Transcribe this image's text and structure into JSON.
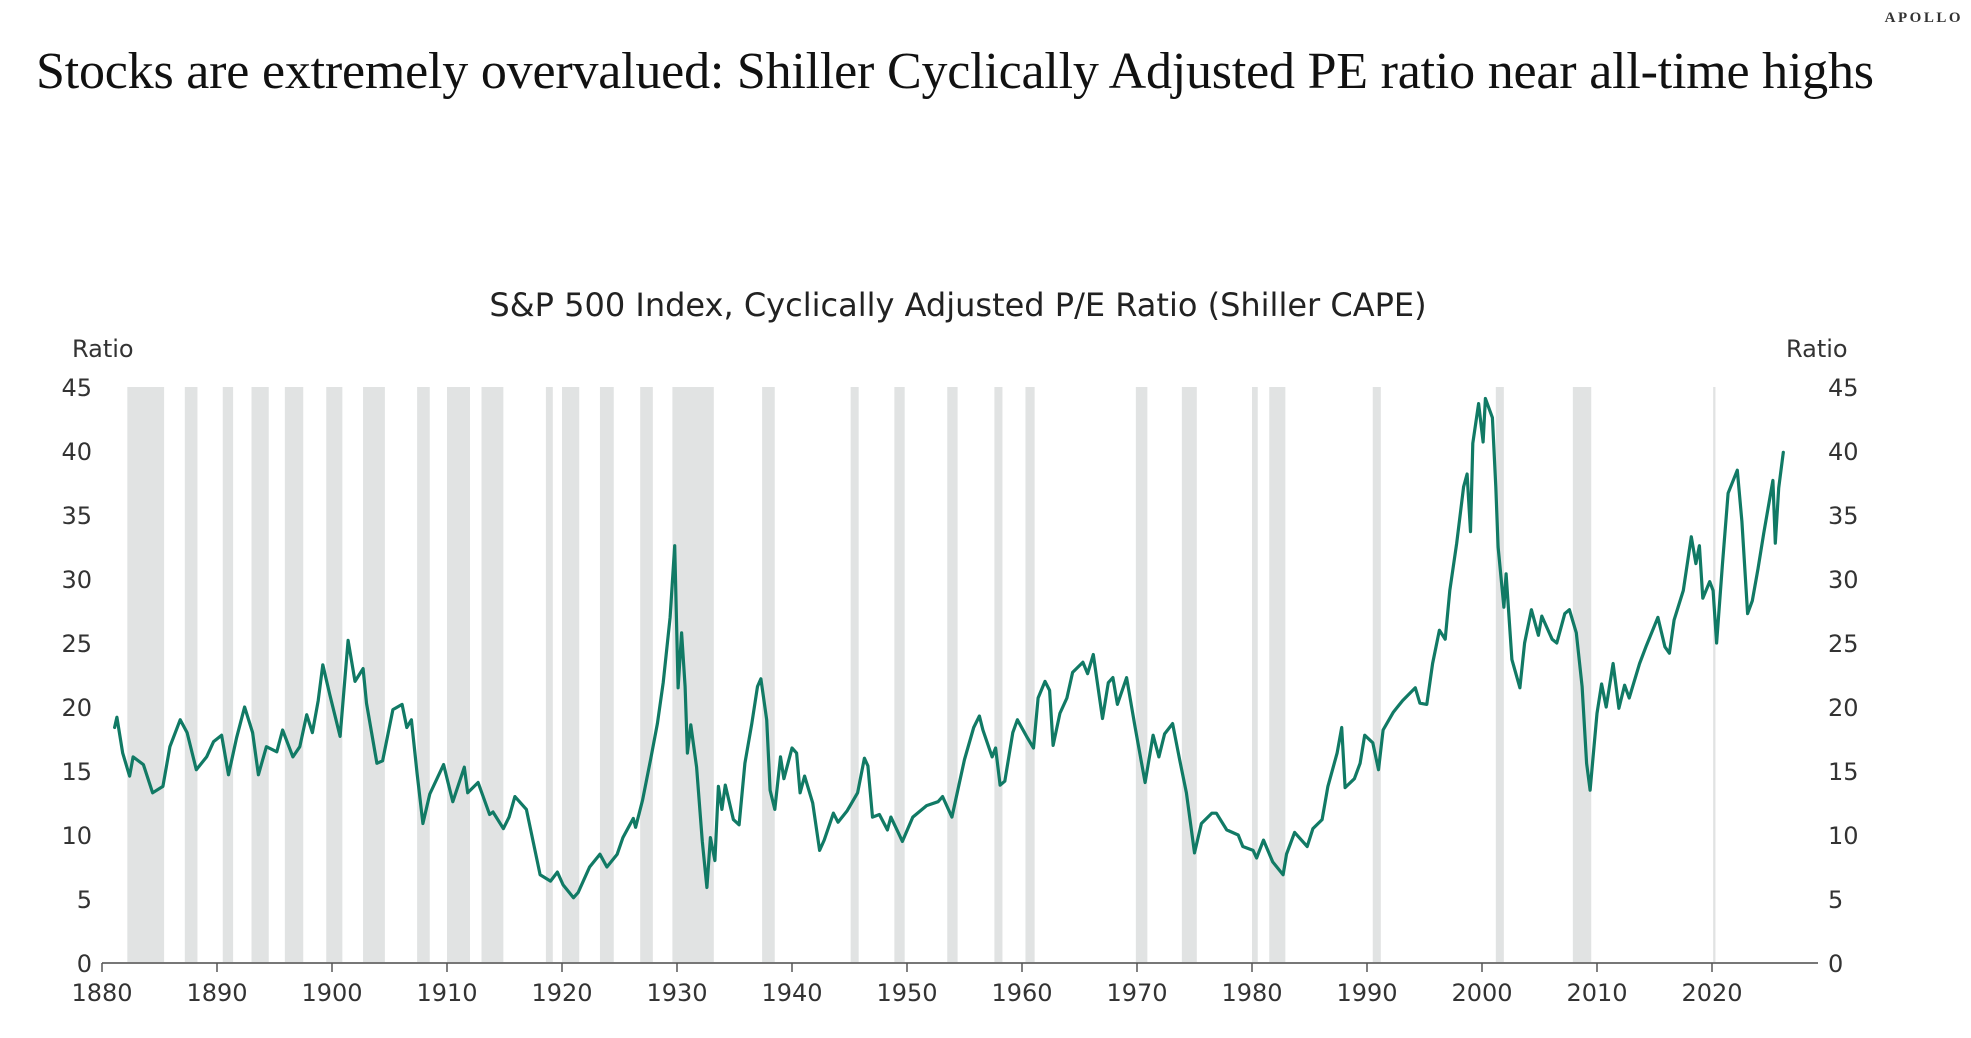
{
  "brand": "APOLLO",
  "headline": "Stocks are extremely overvalued: Shiller Cyclically Adjusted PE ratio near all-time highs",
  "colors": {
    "line": "#117a65",
    "recession": "#e1e3e3",
    "axis": "#777777"
  },
  "chart_data": {
    "type": "line",
    "title": "S&P 500 Index, Cyclically Adjusted P/E Ratio (Shiller CAPE)",
    "ylabel_left": "Ratio",
    "ylabel_right": "Ratio",
    "xlabel": "",
    "xlim": [
      1880,
      2030
    ],
    "ylim": [
      0,
      45
    ],
    "x_ticks": [
      1880,
      1890,
      1900,
      1910,
      1920,
      1930,
      1940,
      1950,
      1960,
      1970,
      1980,
      1990,
      2000,
      2010,
      2020
    ],
    "y_ticks": [
      0,
      5,
      10,
      15,
      20,
      25,
      30,
      35,
      40,
      45
    ],
    "grid": false,
    "legend": "none",
    "recessions": [
      [
        1882.2,
        1885.4
      ],
      [
        1887.2,
        1888.3
      ],
      [
        1890.5,
        1891.4
      ],
      [
        1893.0,
        1894.5
      ],
      [
        1895.9,
        1897.5
      ],
      [
        1899.5,
        1900.9
      ],
      [
        1902.7,
        1904.6
      ],
      [
        1907.4,
        1908.5
      ],
      [
        1910.0,
        1912.0
      ],
      [
        1913.0,
        1914.9
      ],
      [
        1918.6,
        1919.2
      ],
      [
        1920.0,
        1921.5
      ],
      [
        1923.3,
        1924.5
      ],
      [
        1926.8,
        1927.9
      ],
      [
        1929.6,
        1933.2
      ],
      [
        1937.4,
        1938.5
      ],
      [
        1945.1,
        1945.8
      ],
      [
        1948.9,
        1949.8
      ],
      [
        1953.5,
        1954.4
      ],
      [
        1957.6,
        1958.3
      ],
      [
        1960.3,
        1961.1
      ],
      [
        1969.9,
        1970.9
      ],
      [
        1973.9,
        1975.2
      ],
      [
        1980.0,
        1980.5
      ],
      [
        1981.5,
        1982.9
      ],
      [
        1990.5,
        1991.2
      ],
      [
        2001.2,
        2001.9
      ],
      [
        2007.9,
        2009.5
      ],
      [
        2020.1,
        2020.3
      ]
    ],
    "series": [
      {
        "name": "Shiller CAPE",
        "x": [
          1881.1,
          1881.3,
          1881.8,
          1882.4,
          1882.7,
          1883.6,
          1884.4,
          1885.3,
          1885.9,
          1886.8,
          1887.4,
          1888.2,
          1889.1,
          1889.7,
          1890.4,
          1891.0,
          1891.7,
          1892.4,
          1893.1,
          1893.6,
          1894.3,
          1895.2,
          1895.7,
          1896.6,
          1897.2,
          1897.8,
          1898.3,
          1898.8,
          1899.2,
          1899.8,
          1900.7,
          1901.4,
          1902.0,
          1902.7,
          1903.0,
          1903.9,
          1904.4,
          1905.3,
          1906.1,
          1906.5,
          1906.9,
          1907.4,
          1907.9,
          1908.5,
          1909.7,
          1910.5,
          1911.5,
          1911.8,
          1912.7,
          1913.7,
          1914.0,
          1914.9,
          1915.4,
          1915.9,
          1916.9,
          1918.1,
          1919.0,
          1919.6,
          1920.1,
          1921.0,
          1921.4,
          1922.4,
          1923.3,
          1923.9,
          1924.8,
          1925.3,
          1926.2,
          1926.4,
          1927.0,
          1927.7,
          1928.3,
          1928.8,
          1929.4,
          1929.8,
          1930.1,
          1930.4,
          1930.7,
          1930.9,
          1931.2,
          1931.7,
          1932.2,
          1932.6,
          1932.9,
          1933.3,
          1933.6,
          1933.9,
          1934.2,
          1934.9,
          1935.4,
          1935.9,
          1936.5,
          1937.0,
          1937.3,
          1937.8,
          1938.1,
          1938.5,
          1939.0,
          1939.3,
          1940.0,
          1940.4,
          1940.7,
          1941.1,
          1941.8,
          1942.4,
          1942.8,
          1943.6,
          1944.0,
          1944.8,
          1945.7,
          1946.3,
          1946.6,
          1947.0,
          1947.6,
          1948.3,
          1948.6,
          1949.6,
          1950.5,
          1951.7,
          1952.7,
          1953.1,
          1953.9,
          1955.0,
          1955.8,
          1956.3,
          1956.6,
          1957.4,
          1957.7,
          1958.1,
          1958.5,
          1959.2,
          1959.6,
          1960.4,
          1961.0,
          1961.4,
          1962.0,
          1962.4,
          1962.7,
          1963.3,
          1963.9,
          1964.4,
          1965.3,
          1965.7,
          1966.2,
          1967.0,
          1967.5,
          1967.9,
          1968.3,
          1969.1,
          1969.8,
          1970.7,
          1971.4,
          1971.9,
          1972.4,
          1973.1,
          1973.7,
          1974.3,
          1975.0,
          1975.6,
          1976.5,
          1976.9,
          1977.8,
          1978.8,
          1979.2,
          1980.1,
          1980.4,
          1981.0,
          1981.8,
          1982.7,
          1983.0,
          1983.7,
          1984.8,
          1985.3,
          1986.1,
          1986.6,
          1987.4,
          1987.8,
          1988.1,
          1988.9,
          1989.4,
          1989.8,
          1990.5,
          1991.0,
          1991.4,
          1992.3,
          1993.1,
          1994.2,
          1994.6,
          1995.2,
          1995.7,
          1996.3,
          1996.8,
          1997.2,
          1997.8,
          1998.4,
          1998.7,
          1999.0,
          1999.2,
          1999.7,
          2000.1,
          2000.3,
          2000.9,
          2001.2,
          2001.4,
          2001.9,
          2002.1,
          2002.6,
          2003.3,
          2003.7,
          2004.3,
          2004.9,
          2005.2,
          2006.1,
          2006.5,
          2007.2,
          2007.6,
          2008.2,
          2008.7,
          2009.1,
          2009.4,
          2010.0,
          2010.4,
          2010.8,
          2011.4,
          2011.9,
          2012.4,
          2012.8,
          2013.7,
          2014.3,
          2015.3,
          2015.9,
          2016.3,
          2016.7,
          2017.5,
          2018.2,
          2018.6,
          2018.9,
          2019.2,
          2019.8,
          2020.1,
          2020.4,
          2020.9,
          2021.4,
          2022.2,
          2022.6,
          2023.1,
          2023.5,
          2024.0,
          2024.5,
          2025.3,
          2025.5,
          2025.8,
          2026.2
        ],
        "values": [
          18.4,
          19.2,
          16.4,
          14.6,
          16.1,
          15.5,
          13.3,
          13.8,
          16.9,
          19.0,
          18.0,
          15.1,
          16.1,
          17.3,
          17.8,
          14.7,
          17.6,
          20.0,
          18.0,
          14.7,
          16.9,
          16.5,
          18.2,
          16.1,
          16.9,
          19.4,
          18.0,
          20.5,
          23.3,
          21.0,
          17.7,
          25.2,
          22.0,
          23.0,
          20.3,
          15.6,
          15.8,
          19.8,
          20.2,
          18.4,
          19.0,
          14.8,
          10.9,
          13.2,
          15.5,
          12.6,
          15.3,
          13.3,
          14.1,
          11.6,
          11.8,
          10.5,
          11.4,
          13.0,
          12.0,
          6.9,
          6.4,
          7.1,
          6.1,
          5.1,
          5.5,
          7.5,
          8.5,
          7.5,
          8.5,
          9.8,
          11.3,
          10.6,
          12.7,
          15.9,
          18.7,
          21.9,
          27.0,
          32.6,
          21.5,
          25.8,
          21.6,
          16.4,
          18.6,
          15.3,
          9.5,
          5.9,
          9.8,
          8.0,
          13.8,
          12.0,
          13.9,
          11.2,
          10.8,
          15.6,
          18.7,
          21.6,
          22.2,
          19.0,
          13.5,
          12.0,
          16.1,
          14.4,
          16.8,
          16.4,
          13.3,
          14.6,
          12.5,
          8.8,
          9.6,
          11.7,
          11.0,
          11.9,
          13.3,
          16.0,
          15.4,
          11.4,
          11.6,
          10.4,
          11.4,
          9.5,
          11.4,
          12.3,
          12.6,
          13.0,
          11.4,
          15.9,
          18.4,
          19.3,
          18.2,
          16.1,
          16.8,
          13.9,
          14.2,
          18.0,
          19.0,
          17.7,
          16.8,
          20.7,
          22.0,
          21.3,
          17.0,
          19.5,
          20.7,
          22.7,
          23.5,
          22.6,
          24.1,
          19.1,
          21.9,
          22.3,
          20.2,
          22.3,
          18.6,
          14.1,
          17.8,
          16.1,
          17.9,
          18.7,
          15.9,
          13.3,
          8.6,
          10.9,
          11.7,
          11.7,
          10.4,
          10.0,
          9.1,
          8.8,
          8.2,
          9.6,
          7.9,
          6.9,
          8.5,
          10.2,
          9.1,
          10.5,
          11.2,
          13.8,
          16.4,
          18.4,
          13.7,
          14.4,
          15.6,
          17.8,
          17.2,
          15.1,
          18.2,
          19.6,
          20.5,
          21.5,
          20.3,
          20.2,
          23.4,
          26.0,
          25.3,
          29.1,
          32.8,
          37.2,
          38.2,
          33.7,
          40.6,
          43.7,
          40.7,
          44.1,
          42.6,
          37.2,
          32.5,
          27.8,
          30.4,
          23.7,
          21.5,
          25.0,
          27.6,
          25.6,
          27.1,
          25.3,
          25.0,
          27.3,
          27.6,
          25.8,
          21.6,
          15.6,
          13.5,
          19.5,
          21.8,
          20.0,
          23.4,
          19.9,
          21.7,
          20.7,
          23.4,
          24.8,
          27.0,
          24.7,
          24.2,
          26.8,
          29.1,
          33.3,
          31.2,
          32.6,
          28.5,
          29.8,
          29.1,
          25.0,
          31.1,
          36.7,
          38.5,
          34.5,
          27.3,
          28.3,
          30.8,
          33.6,
          37.7,
          32.8,
          37.1,
          39.9
        ]
      }
    ]
  }
}
